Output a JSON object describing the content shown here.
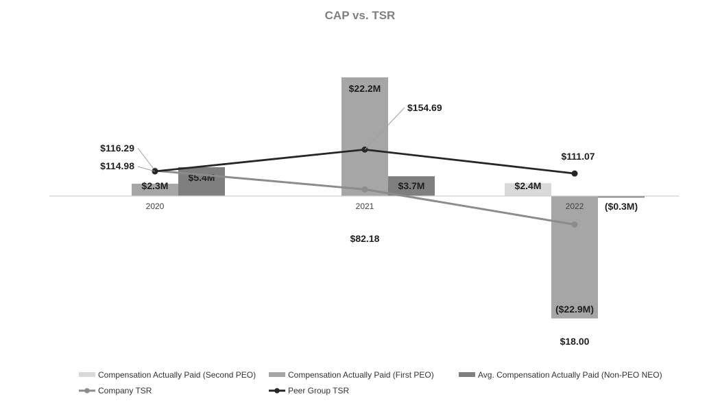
{
  "chart_data": {
    "type": "bar",
    "title": "CAP vs. TSR",
    "categories": [
      "2020",
      "2021",
      "2022"
    ],
    "series": [
      {
        "name": "Compensation Actually Paid (Second PEO)",
        "type": "bar",
        "axis": "left",
        "color": "#d9d9d9",
        "values": [
          null,
          null,
          2.4
        ],
        "labels": [
          "",
          "",
          "$2.4M"
        ]
      },
      {
        "name": "Compensation Actually Paid (First PEO)",
        "type": "bar",
        "axis": "left",
        "color": "#a6a6a6",
        "values": [
          2.3,
          22.2,
          -22.9
        ],
        "labels": [
          "$2.3M",
          "$22.2M",
          "($22.9M)"
        ]
      },
      {
        "name": "Avg. Compensation Actually Paid (Non-PEO NEO)",
        "type": "bar",
        "axis": "left",
        "color": "#7f7f7f",
        "values": [
          5.4,
          3.7,
          -0.3
        ],
        "labels": [
          "$5.4M",
          "$3.7M",
          "($0.3M)"
        ]
      },
      {
        "name": "Company TSR",
        "type": "line",
        "axis": "right",
        "color": "#8c8c8c",
        "values": [
          116.29,
          82.18,
          18.0
        ],
        "labels": [
          "$116.29",
          "$82.18",
          "$18.00"
        ]
      },
      {
        "name": "Peer Group TSR",
        "type": "line",
        "axis": "right",
        "color": "#262626",
        "values": [
          114.98,
          154.69,
          111.07
        ],
        "labels": [
          "$114.98",
          "$154.69",
          "$111.07"
        ]
      }
    ],
    "ylabel": "",
    "xlabel": "",
    "ylim": [
      -27,
      27
    ],
    "y2lim": [
      0,
      270
    ],
    "grid": false,
    "legend_position": "bottom"
  }
}
